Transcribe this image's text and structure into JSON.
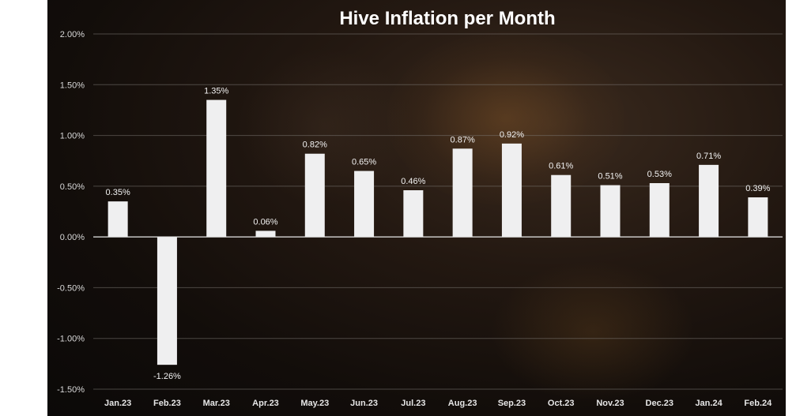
{
  "chart_data": {
    "type": "bar",
    "title": "Hive Inflation per Month",
    "xlabel": "",
    "ylabel": "",
    "categories": [
      "Jan.23",
      "Feb.23",
      "Mar.23",
      "Apr.23",
      "May.23",
      "Jun.23",
      "Jul.23",
      "Aug.23",
      "Sep.23",
      "Oct.23",
      "Nov.23",
      "Dec.23",
      "Jan.24",
      "Feb.24"
    ],
    "values": [
      0.35,
      -1.26,
      1.35,
      0.06,
      0.82,
      0.65,
      0.46,
      0.87,
      0.92,
      0.61,
      0.51,
      0.53,
      0.71,
      0.39
    ],
    "data_labels": [
      "0.35%",
      "-1.26%",
      "1.35%",
      "0.06%",
      "0.82%",
      "0.65%",
      "0.46%",
      "0.87%",
      "0.92%",
      "0.61%",
      "0.51%",
      "0.53%",
      "0.71%",
      "0.39%"
    ],
    "ylim": [
      -1.5,
      2.0
    ],
    "yticks": [
      2.0,
      1.5,
      1.0,
      0.5,
      0.0,
      -0.5,
      -1.0,
      -1.5
    ],
    "ytick_labels": [
      "2.00%",
      "1.50%",
      "1.00%",
      "0.50%",
      "0.00%",
      "-0.50%",
      "-1.00%",
      "-1.50%"
    ],
    "grid": true,
    "bar_color": "#efeff0",
    "background": "dark photo of bees"
  }
}
